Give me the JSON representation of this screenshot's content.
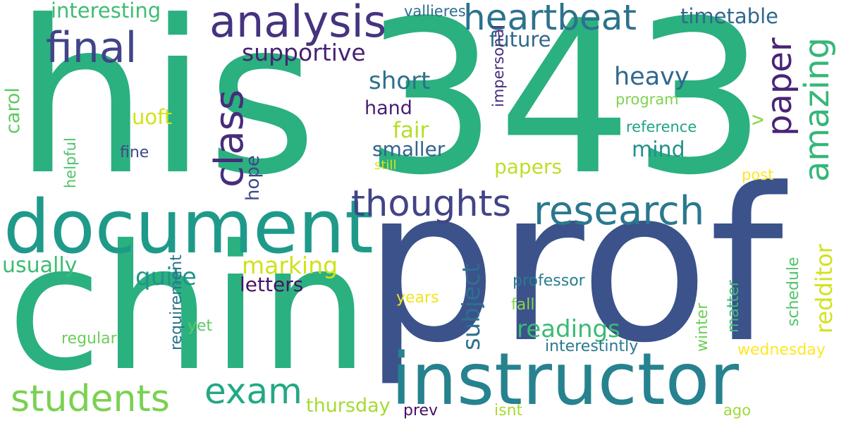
{
  "words": [
    {
      "text": "his",
      "color": "#2bb07f"
    },
    {
      "text": "343",
      "color": "#2bb07f"
    },
    {
      "text": "prof",
      "color": "#3b528b"
    },
    {
      "text": "chin",
      "color": "#2bb07f"
    },
    {
      "text": "document",
      "color": "#1f9a8a"
    },
    {
      "text": "instructor",
      "color": "#26828e"
    },
    {
      "text": "analysis",
      "color": "#46337f"
    },
    {
      "text": "heartbeat",
      "color": "#2c728e"
    },
    {
      "text": "final",
      "color": "#414487"
    },
    {
      "text": "research",
      "color": "#2a788e"
    },
    {
      "text": "thoughts",
      "color": "#414487"
    },
    {
      "text": "students",
      "color": "#7ad151"
    },
    {
      "text": "exam",
      "color": "#22a884"
    },
    {
      "text": "class",
      "color": "#472d7b"
    },
    {
      "text": "paper",
      "color": "#482475"
    },
    {
      "text": "amazing",
      "color": "#35b779"
    },
    {
      "text": "supportive",
      "color": "#482173"
    },
    {
      "text": "interesting",
      "color": "#3fbc73"
    },
    {
      "text": "future",
      "color": "#31688e"
    },
    {
      "text": "short",
      "color": "#2c728e"
    },
    {
      "text": "heavy",
      "color": "#31688e"
    },
    {
      "text": "hand",
      "color": "#481f70"
    },
    {
      "text": "fair",
      "color": "#b5de2b"
    },
    {
      "text": "smaller",
      "color": "#33638d"
    },
    {
      "text": "mind",
      "color": "#21918c"
    },
    {
      "text": "papers",
      "color": "#bddf26"
    },
    {
      "text": "uoft",
      "color": "#d2e21b"
    },
    {
      "text": "fine",
      "color": "#3e4989"
    },
    {
      "text": "timetable",
      "color": "#30678d"
    },
    {
      "text": "vallieres",
      "color": "#2e6e8e"
    },
    {
      "text": "program",
      "color": "#7fd34e"
    },
    {
      "text": "reference",
      "color": "#20a386"
    },
    {
      "text": "still",
      "color": "#d8e219"
    },
    {
      "text": "post",
      "color": "#fde725"
    },
    {
      "text": "hope",
      "color": "#3f4889"
    },
    {
      "text": "carol",
      "color": "#5ec962"
    },
    {
      "text": "helpful",
      "color": "#4ec36b"
    },
    {
      "text": "v",
      "color": "#8bd646"
    },
    {
      "text": "impersonal",
      "color": "#472a7a"
    },
    {
      "text": "usually",
      "color": "#3dbc74"
    },
    {
      "text": "quite",
      "color": "#1f958b"
    },
    {
      "text": "marking",
      "color": "#d0e11c"
    },
    {
      "text": "letters",
      "color": "#471365"
    },
    {
      "text": "readings",
      "color": "#3aba76"
    },
    {
      "text": "professor",
      "color": "#287d8e"
    },
    {
      "text": "fall",
      "color": "#86d549"
    },
    {
      "text": "years",
      "color": "#f1e51d"
    },
    {
      "text": "regular",
      "color": "#6ccd5a"
    },
    {
      "text": "yet",
      "color": "#5ec962"
    },
    {
      "text": "interestintly",
      "color": "#2a788e"
    },
    {
      "text": "wednesday",
      "color": "#fde725"
    },
    {
      "text": "thursday",
      "color": "#a5db36"
    },
    {
      "text": "prev",
      "color": "#471063"
    },
    {
      "text": "isnt",
      "color": "#a8db34"
    },
    {
      "text": "ago",
      "color": "#9dd93b"
    },
    {
      "text": "subject",
      "color": "#2d708e"
    },
    {
      "text": "redditor",
      "color": "#d2e21b"
    },
    {
      "text": "winter",
      "color": "#6ece58"
    },
    {
      "text": "matter",
      "color": "#3bbb75"
    },
    {
      "text": "schedule",
      "color": "#50c46a"
    },
    {
      "text": "requirement",
      "color": "#2c728e"
    }
  ]
}
